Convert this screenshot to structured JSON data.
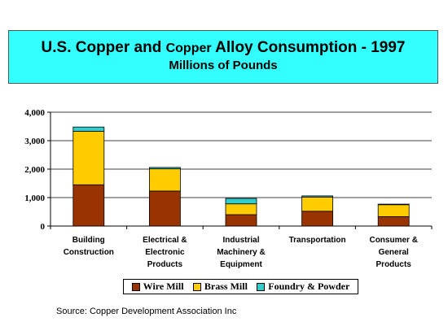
{
  "title": {
    "part1": "U.S. Copper and ",
    "part2": "Copper",
    "part3": " Alloy Consumption - 1997",
    "subtitle": "Millions of Pounds"
  },
  "source": "Source: Copper Development Association Inc",
  "colors": {
    "wire_mill": "#993300",
    "brass_mill": "#ffcc00",
    "foundry_powder": "#33cccc"
  },
  "chart_data": {
    "type": "bar",
    "stacked": true,
    "categories": [
      [
        "Building",
        "Construction"
      ],
      [
        "Electrical &",
        "Electronic",
        "Products"
      ],
      [
        "Industrial",
        "Machinery &",
        "Equipment"
      ],
      [
        "Transportation"
      ],
      [
        "Consumer &",
        "General",
        "Products"
      ]
    ],
    "series": [
      {
        "name": "Wire Mill",
        "values": [
          1450,
          1230,
          400,
          520,
          330
        ]
      },
      {
        "name": "Brass Mill",
        "values": [
          1880,
          780,
          380,
          500,
          420
        ]
      },
      {
        "name": "Foundry & Powder",
        "values": [
          150,
          50,
          190,
          40,
          20
        ]
      }
    ],
    "ylim": [
      0,
      4000
    ],
    "yticks": [
      "0",
      "1,000",
      "2,000",
      "3,000",
      "4,000"
    ],
    "grid": true,
    "legend_position": "bottom"
  }
}
